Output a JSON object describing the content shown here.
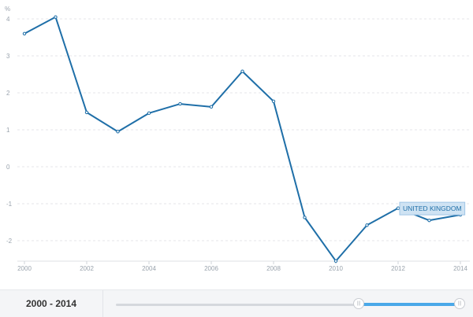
{
  "chart_data": {
    "type": "line",
    "y_unit_label": "%",
    "x": [
      2000,
      2001,
      2002,
      2003,
      2004,
      2005,
      2006,
      2007,
      2008,
      2009,
      2010,
      2011,
      2012,
      2013,
      2014
    ],
    "x_tick_labels": [
      "2000",
      "2002",
      "2004",
      "2006",
      "2008",
      "2010",
      "2012",
      "2014"
    ],
    "xlim": [
      2000,
      2014
    ],
    "y_ticks": [
      4,
      3,
      2,
      1,
      0,
      -1,
      -2
    ],
    "y_tick_labels": [
      "4",
      "3",
      "2",
      "1",
      "0",
      "-1",
      "-2"
    ],
    "ylim": [
      -2.5,
      4.2
    ],
    "series": [
      {
        "name": "UNITED KINGDOM",
        "color": "#1f6fa8",
        "values": [
          3.6,
          4.05,
          1.47,
          0.95,
          1.45,
          1.7,
          1.62,
          2.58,
          1.77,
          -1.37,
          -2.55,
          -1.58,
          -1.12,
          -1.45,
          -1.3
        ]
      }
    ],
    "grid": true,
    "legend": "label-on-line"
  },
  "range_selector": {
    "label": "2000 - 2014",
    "handle_glyph": "|||",
    "selected_fraction": [
      0.71,
      1.0
    ]
  }
}
